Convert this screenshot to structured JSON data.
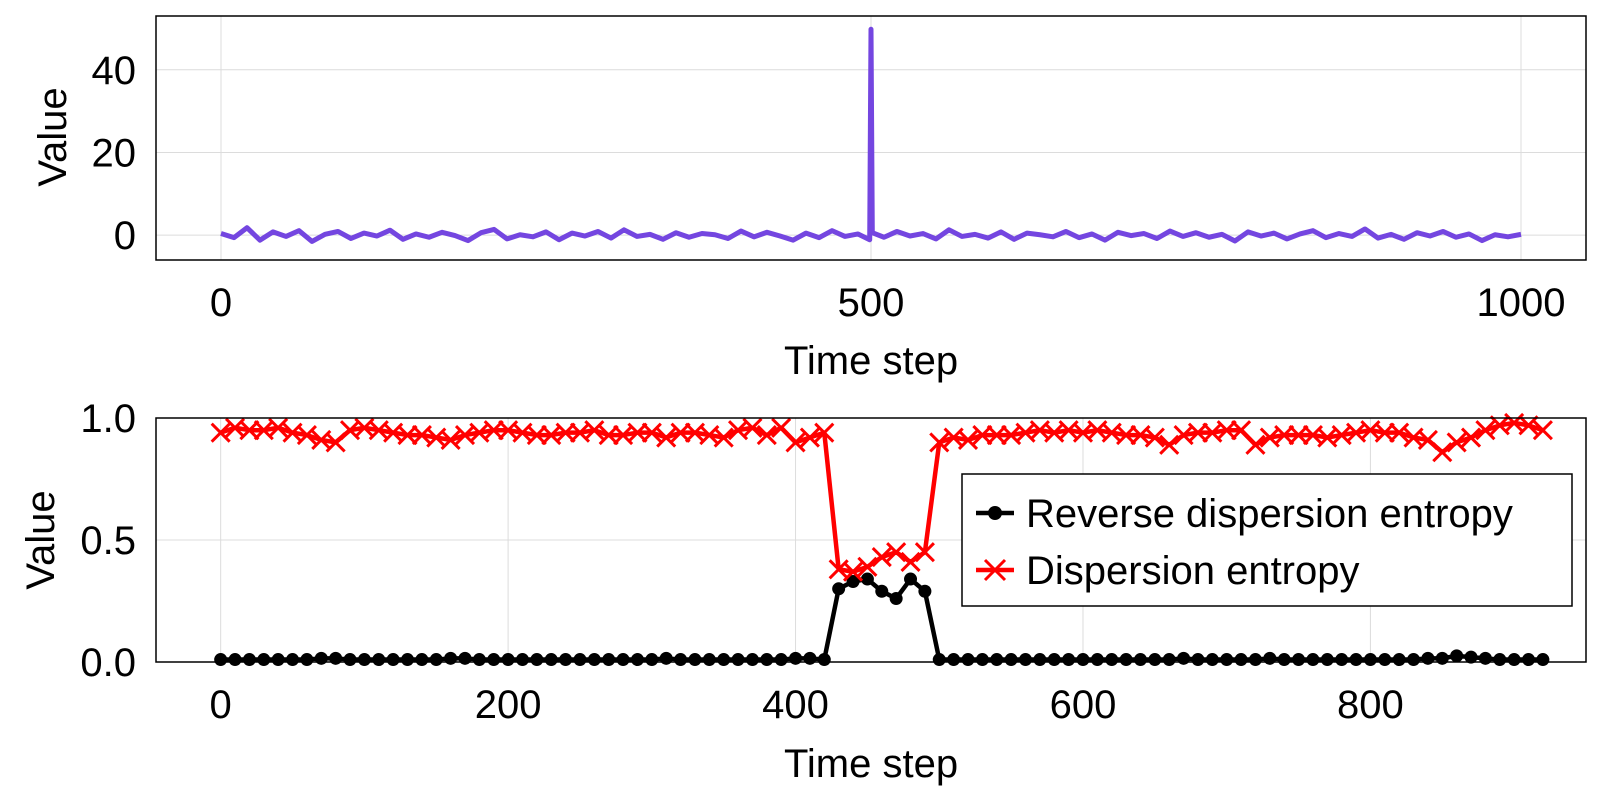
{
  "chart_data": [
    {
      "type": "line",
      "xlabel": "Time step",
      "ylabel": "Value",
      "xlim": [
        -50,
        1050
      ],
      "ylim": [
        -6,
        53
      ],
      "xticks": [
        0,
        500,
        1000
      ],
      "yticks": [
        0,
        20,
        40
      ],
      "grid": true,
      "series": [
        {
          "color": "#7446e0",
          "x": [
            0,
            10,
            20,
            30,
            40,
            50,
            60,
            70,
            80,
            90,
            100,
            110,
            120,
            130,
            140,
            150,
            160,
            170,
            180,
            190,
            200,
            210,
            220,
            230,
            240,
            250,
            260,
            270,
            280,
            290,
            300,
            310,
            320,
            330,
            340,
            350,
            360,
            370,
            380,
            390,
            400,
            410,
            420,
            430,
            440,
            450,
            460,
            470,
            480,
            490,
            499,
            500,
            501,
            510,
            520,
            530,
            540,
            550,
            560,
            570,
            580,
            590,
            600,
            610,
            620,
            630,
            640,
            650,
            660,
            670,
            680,
            690,
            700,
            710,
            720,
            730,
            740,
            750,
            760,
            770,
            780,
            790,
            800,
            810,
            820,
            830,
            840,
            850,
            860,
            870,
            880,
            890,
            900,
            910,
            920,
            930,
            940,
            950,
            960,
            970,
            980,
            990,
            1000
          ],
          "y": [
            0.4,
            -0.6,
            1.8,
            -1.2,
            0.8,
            -0.3,
            1.1,
            -1.5,
            0.2,
            0.9,
            -0.8,
            0.5,
            -0.2,
            1.2,
            -1.0,
            0.3,
            -0.5,
            0.7,
            -0.1,
            -1.3,
            0.6,
            1.4,
            -0.9,
            0.1,
            -0.4,
            0.8,
            -1.1,
            0.5,
            -0.2,
            0.9,
            -0.7,
            1.3,
            -0.3,
            0.2,
            -1.0,
            0.6,
            -0.5,
            0.4,
            0.1,
            -0.8,
            1.0,
            -0.4,
            0.7,
            -0.2,
            -1.2,
            0.5,
            -0.6,
            1.1,
            -0.3,
            0.3,
            -1.1,
            49.8,
            0.6,
            -0.5,
            0.9,
            -0.2,
            0.4,
            -0.9,
            1.3,
            -0.3,
            0.2,
            -0.7,
            0.8,
            -1.0,
            0.5,
            0.1,
            -0.4,
            0.9,
            -0.6,
            0.3,
            -1.2,
            0.7,
            -0.1,
            0.4,
            -0.8,
            1.0,
            -0.3,
            0.6,
            -0.5,
            0.2,
            -1.4,
            0.8,
            -0.2,
            0.5,
            -0.9,
            0.3,
            1.1,
            -0.6,
            0.4,
            -0.3,
            1.5,
            -0.7,
            0.2,
            -1.0,
            0.6,
            -0.2,
            0.9,
            -0.5,
            0.3,
            -1.3,
            0.1,
            -0.4,
            0.2
          ]
        }
      ]
    },
    {
      "type": "line",
      "xlabel": "Time step",
      "ylabel": "Value",
      "xlim": [
        -45,
        950
      ],
      "ylim": [
        0.0,
        1.0
      ],
      "xticks": [
        0,
        200,
        400,
        600,
        800
      ],
      "yticks": [
        0.0,
        0.5,
        1.0
      ],
      "ytick_labels": [
        "0.0",
        "0.5",
        "1.0"
      ],
      "grid": true,
      "legend": "right",
      "x": [
        0,
        10,
        20,
        30,
        40,
        50,
        60,
        70,
        80,
        90,
        100,
        110,
        120,
        130,
        140,
        150,
        160,
        170,
        180,
        190,
        200,
        210,
        220,
        230,
        240,
        250,
        260,
        270,
        280,
        290,
        300,
        310,
        320,
        330,
        340,
        350,
        360,
        370,
        380,
        390,
        400,
        410,
        420,
        430,
        440,
        450,
        460,
        470,
        480,
        490,
        500,
        510,
        520,
        530,
        540,
        550,
        560,
        570,
        580,
        590,
        600,
        610,
        620,
        630,
        640,
        650,
        660,
        670,
        680,
        690,
        700,
        710,
        720,
        730,
        740,
        750,
        760,
        770,
        780,
        790,
        800,
        810,
        820,
        830,
        840,
        850,
        860,
        870,
        880,
        890,
        900,
        910,
        920
      ],
      "series": [
        {
          "name": "Reverse dispersion entropy",
          "color": "#000000",
          "marker": "circle",
          "y": [
            0.01,
            0.01,
            0.01,
            0.01,
            0.01,
            0.01,
            0.01,
            0.015,
            0.015,
            0.01,
            0.01,
            0.01,
            0.01,
            0.01,
            0.01,
            0.01,
            0.015,
            0.015,
            0.01,
            0.01,
            0.01,
            0.01,
            0.01,
            0.01,
            0.01,
            0.01,
            0.01,
            0.01,
            0.01,
            0.01,
            0.01,
            0.015,
            0.01,
            0.01,
            0.01,
            0.01,
            0.01,
            0.01,
            0.01,
            0.01,
            0.015,
            0.015,
            0.01,
            0.3,
            0.33,
            0.34,
            0.29,
            0.26,
            0.34,
            0.29,
            0.01,
            0.01,
            0.01,
            0.01,
            0.01,
            0.01,
            0.01,
            0.01,
            0.01,
            0.01,
            0.01,
            0.01,
            0.01,
            0.01,
            0.01,
            0.01,
            0.01,
            0.015,
            0.01,
            0.01,
            0.01,
            0.01,
            0.01,
            0.015,
            0.01,
            0.01,
            0.01,
            0.01,
            0.01,
            0.01,
            0.01,
            0.01,
            0.01,
            0.01,
            0.015,
            0.015,
            0.025,
            0.02,
            0.015,
            0.01,
            0.01,
            0.01,
            0.01
          ]
        },
        {
          "name": "Dispersion entropy",
          "color": "#ff0000",
          "marker": "cross",
          "y": [
            0.94,
            0.96,
            0.95,
            0.95,
            0.96,
            0.94,
            0.93,
            0.91,
            0.9,
            0.95,
            0.96,
            0.95,
            0.94,
            0.93,
            0.93,
            0.92,
            0.91,
            0.93,
            0.94,
            0.95,
            0.95,
            0.94,
            0.93,
            0.93,
            0.94,
            0.94,
            0.95,
            0.93,
            0.93,
            0.94,
            0.94,
            0.92,
            0.94,
            0.94,
            0.93,
            0.92,
            0.95,
            0.96,
            0.93,
            0.96,
            0.9,
            0.92,
            0.94,
            0.38,
            0.37,
            0.39,
            0.43,
            0.45,
            0.41,
            0.45,
            0.9,
            0.92,
            0.91,
            0.93,
            0.93,
            0.93,
            0.94,
            0.95,
            0.94,
            0.95,
            0.94,
            0.95,
            0.94,
            0.93,
            0.93,
            0.92,
            0.89,
            0.93,
            0.94,
            0.94,
            0.95,
            0.95,
            0.89,
            0.92,
            0.93,
            0.93,
            0.93,
            0.92,
            0.93,
            0.94,
            0.95,
            0.94,
            0.94,
            0.92,
            0.91,
            0.86,
            0.9,
            0.92,
            0.95,
            0.97,
            0.98,
            0.97,
            0.95
          ]
        }
      ]
    }
  ]
}
